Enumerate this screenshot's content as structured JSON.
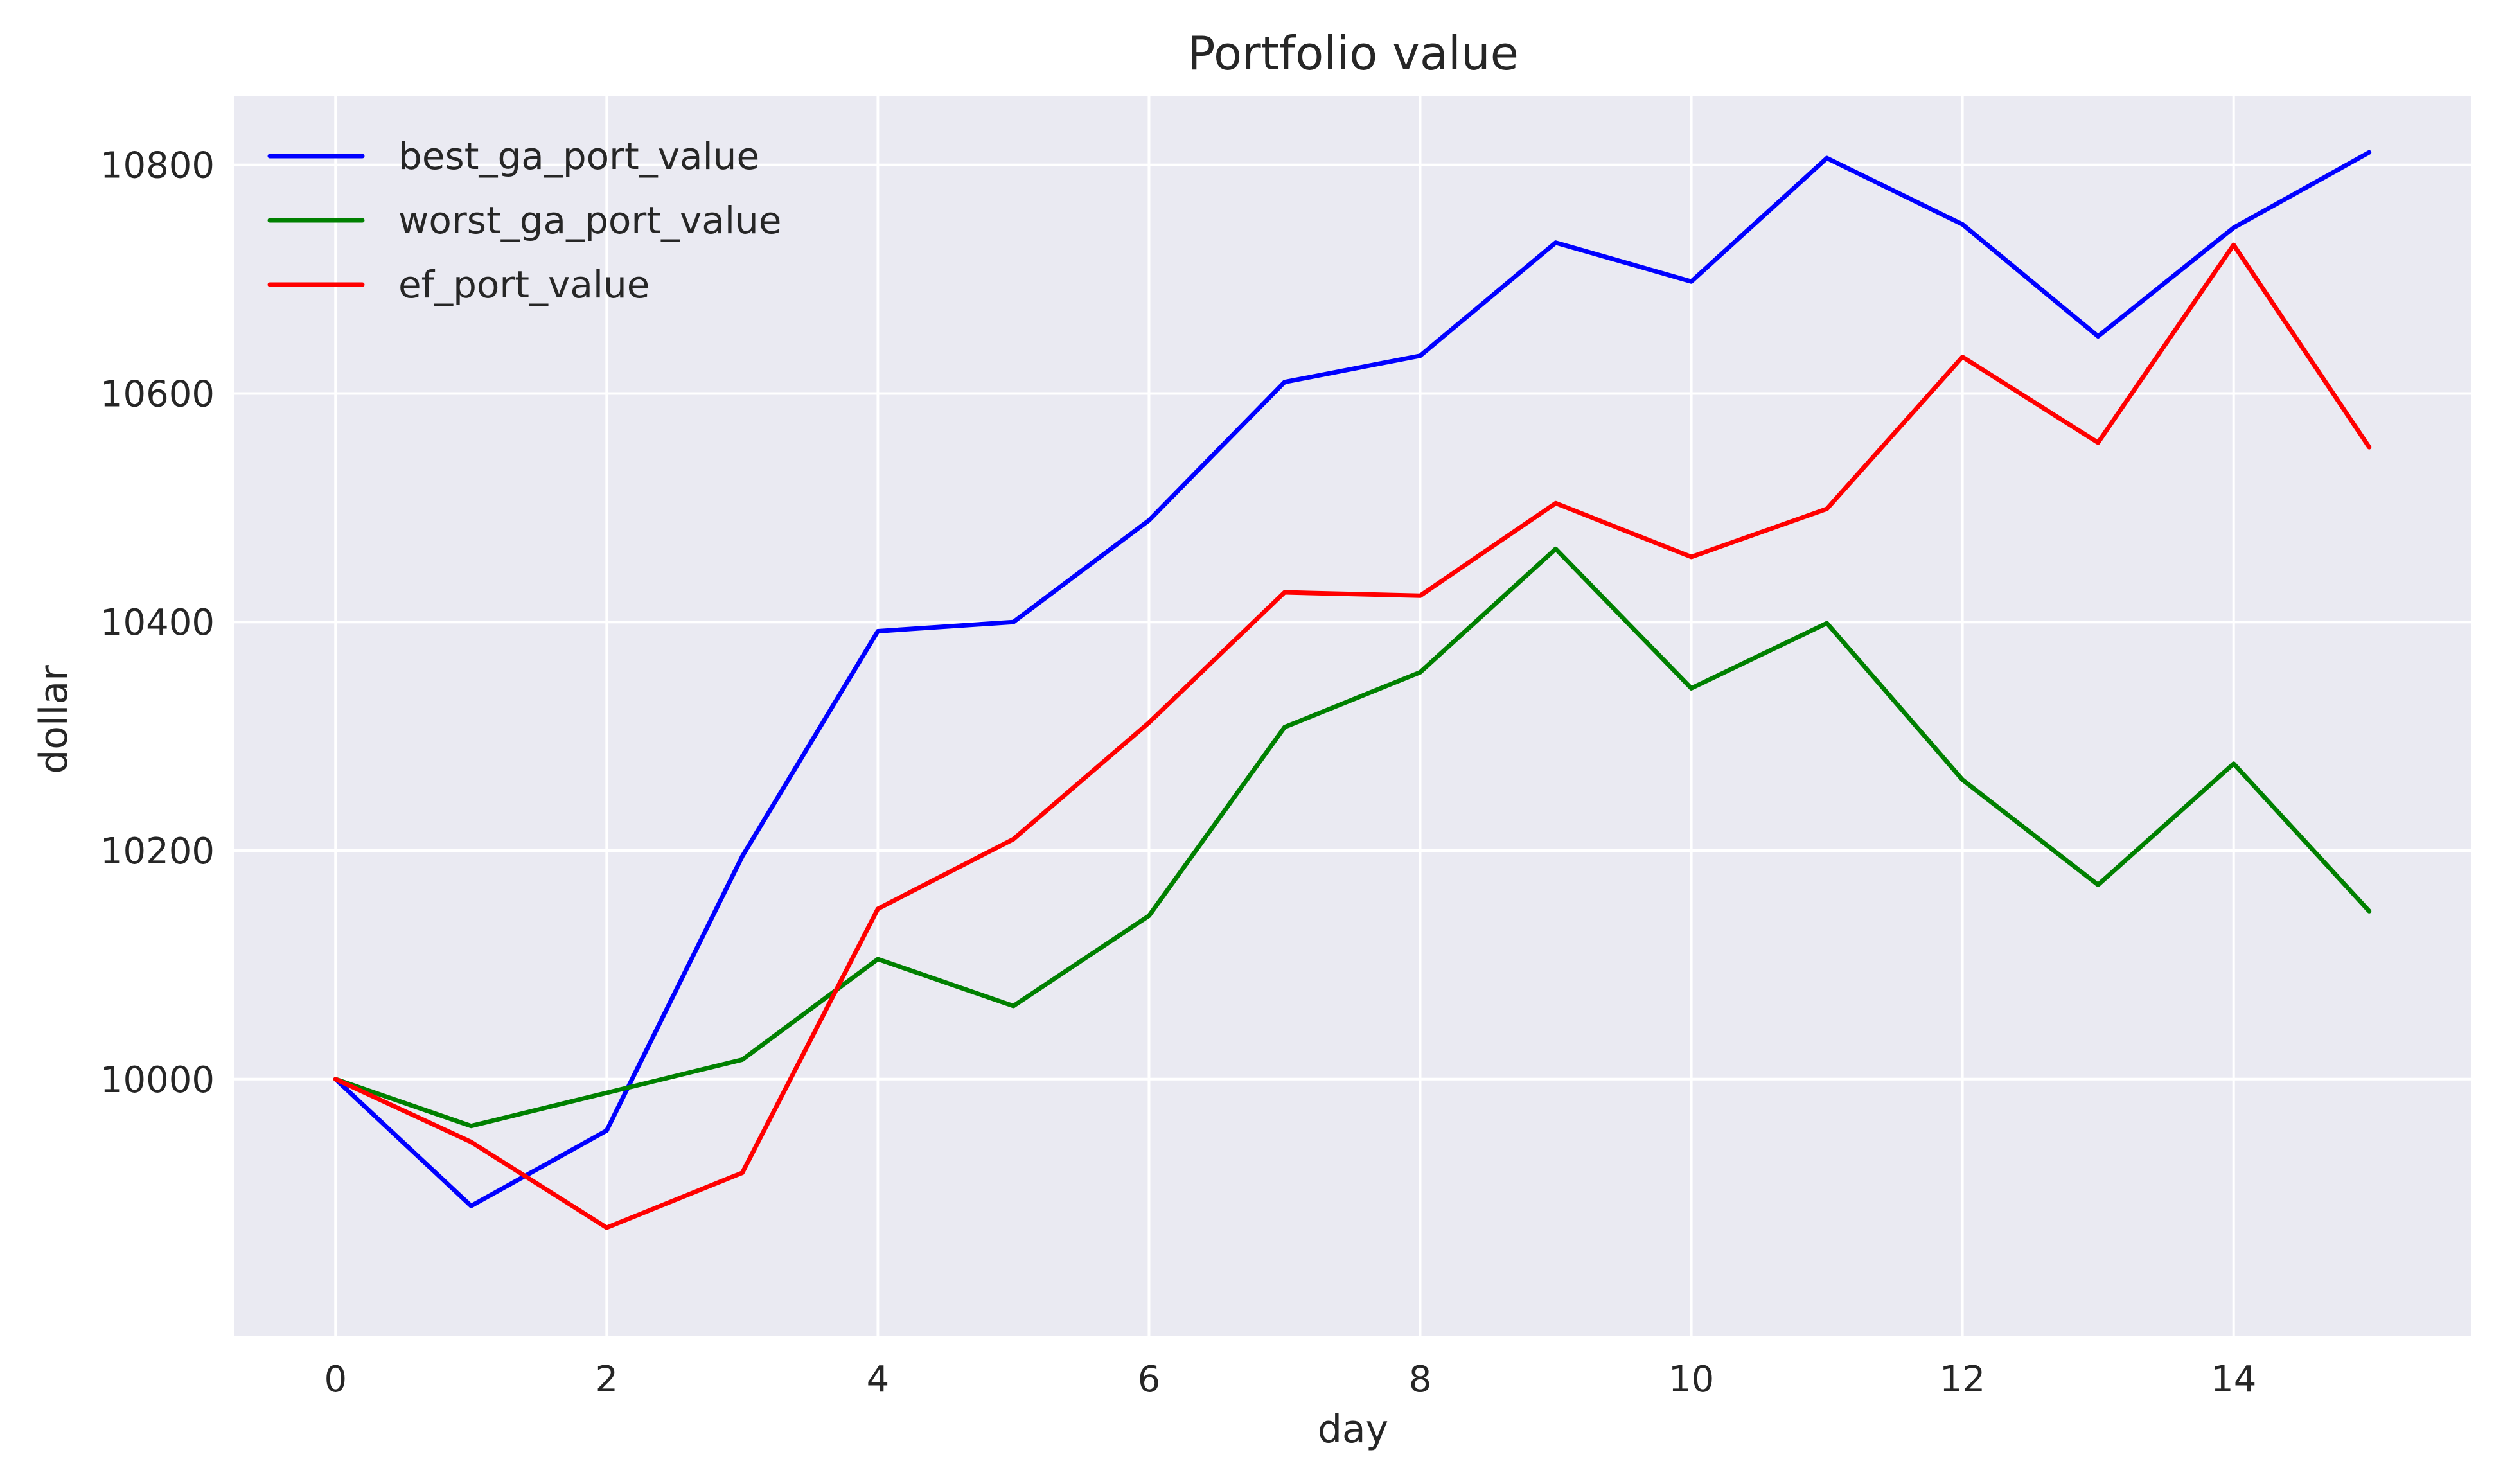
{
  "chart_data": {
    "type": "line",
    "title": "Portfolio value",
    "xlabel": "day",
    "ylabel": "dollar",
    "xlim": [
      -0.75,
      15.75
    ],
    "ylim": [
      9775,
      10860
    ],
    "xticks": [
      0,
      2,
      4,
      6,
      8,
      10,
      12,
      14
    ],
    "yticks": [
      10000,
      10200,
      10400,
      10600,
      10800
    ],
    "grid": true,
    "legend_position": "upper-left",
    "x": [
      0,
      1,
      2,
      3,
      4,
      5,
      6,
      7,
      8,
      9,
      10,
      11,
      12,
      13,
      14,
      15
    ],
    "series": [
      {
        "name": "best_ga_port_value",
        "color": "#0000ff",
        "values": [
          10000,
          9889,
          9955,
          10195,
          10392,
          10400,
          10489,
          10610,
          10633,
          10732,
          10698,
          10806,
          10748,
          10650,
          10745,
          10811
        ]
      },
      {
        "name": "worst_ga_port_value",
        "color": "#008000",
        "values": [
          10000,
          9959,
          9988,
          10017,
          10105,
          10064,
          10143,
          10308,
          10356,
          10464,
          10342,
          10399,
          10262,
          10170,
          10276,
          10147
        ]
      },
      {
        "name": "ef_port_value",
        "color": "#ff0000",
        "values": [
          10000,
          9945,
          9870,
          9918,
          10149,
          10210,
          10312,
          10426,
          10423,
          10504,
          10457,
          10499,
          10632,
          10557,
          10730,
          10553
        ]
      }
    ]
  },
  "colors": {
    "plot_background": "#eaeaf2",
    "grid": "#ffffff"
  }
}
